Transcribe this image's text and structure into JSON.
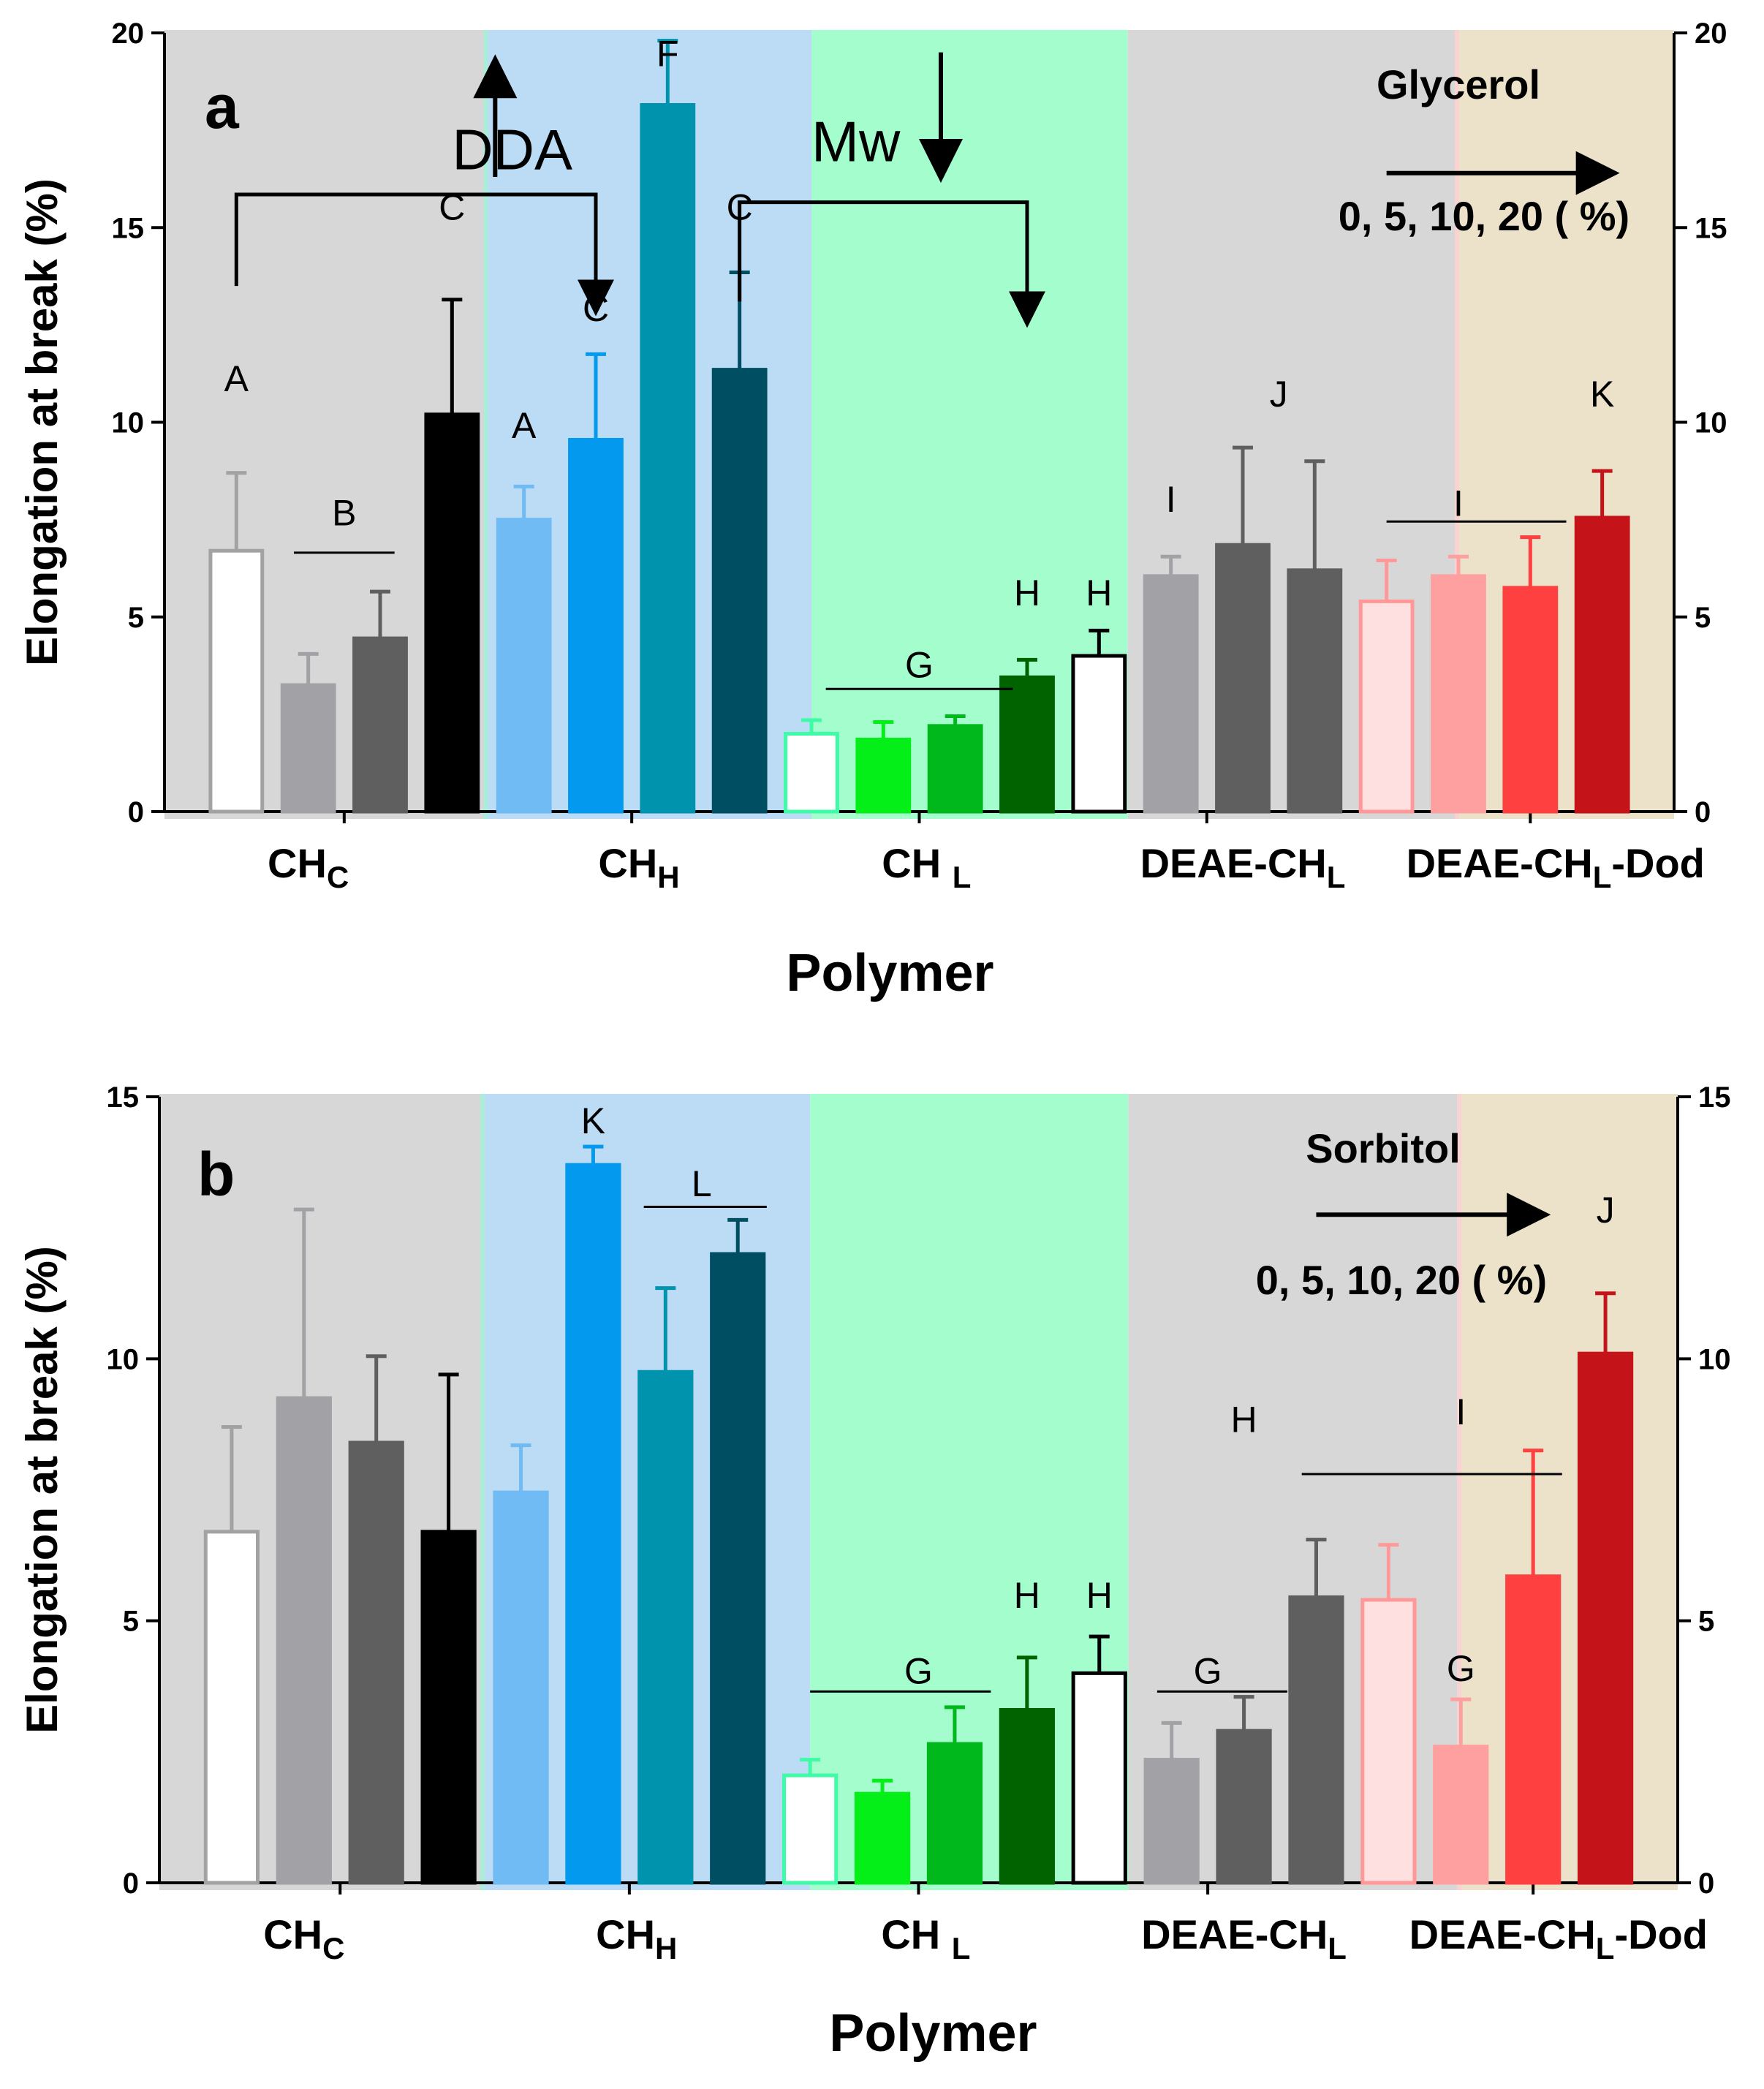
{
  "colors": {
    "bg_chc": "#d7d7d7",
    "bg_chh": "#bcdcf5",
    "bg_chl": "#a3fdcc",
    "bg_deae": "#d7d7d7",
    "bg_dod": "#ebe2c9",
    "bg_edge_mint": "#9ff3da",
    "bg_edge_pink": "#fbd1d1",
    "fill_chc": [
      "#ffffff",
      "#a2a2a6",
      "#5f5f5f",
      "#000000"
    ],
    "stroke_chc": [
      "#a2a2a2",
      "#a2a2a6",
      "#5f5f5f",
      "#000000"
    ],
    "fill_chh": [
      "#70bbf4",
      "#0399ee",
      "#0093ae",
      "#004e62"
    ],
    "fill_chl": [
      "#ffffff",
      "#04ef17",
      "#00b81b",
      "#006300"
    ],
    "stroke_chl": [
      "#3dfba6",
      "#04ef17",
      "#00b81b",
      "#006300"
    ],
    "fill_deae": [
      "#ffffff",
      "#a2a2a6",
      "#5f5f5f",
      "#5f5f5f"
    ],
    "stroke_deae": [
      "#000000",
      "#a2a2a6",
      "#5f5f5f",
      "#5f5f5f"
    ],
    "fill_dod": [
      "#ffe0e0",
      "#ffa0a0",
      "#ff4040",
      "#c41419"
    ],
    "stroke_dod": [
      "#ff9999",
      "#ffa0a0",
      "#ff4040",
      "#c41419"
    ]
  },
  "chart_data": [
    {
      "panel": "a",
      "type": "bar",
      "ylabel": "Elongation at break (%)",
      "xlabel": "Polymer",
      "ylim": [
        0,
        20
      ],
      "yticks": [
        0,
        5,
        10,
        15,
        20
      ],
      "categories": [
        {
          "key": "chc",
          "label": "CH",
          "sub": "C",
          "suffix": ""
        },
        {
          "key": "chh",
          "label": "CH",
          "sub": "H",
          "suffix": ""
        },
        {
          "key": "chl",
          "label": "CH ",
          "sub": "L",
          "suffix": ""
        },
        {
          "key": "deae",
          "label": "DEAE-CH",
          "sub": "L",
          "suffix": ""
        },
        {
          "key": "dod",
          "label": "DEAE-CH",
          "sub": "L",
          "suffix": "-Dod"
        }
      ],
      "series_name": "Glycerol",
      "series_levels": "0,  5, 10, 20 ( %)",
      "values": {
        "chc": [
          6.7,
          3.25,
          4.45,
          10.2
        ],
        "chh": [
          7.5,
          9.55,
          18.15,
          11.35
        ],
        "chl": [
          2.0,
          1.85,
          2.2,
          3.45
        ],
        "deae": [
          4.0,
          6.05,
          6.85,
          6.2
        ],
        "dod": [
          5.4,
          6.05,
          5.75,
          7.55
        ]
      },
      "errors": {
        "chc": [
          2.0,
          0.8,
          1.2,
          2.95
        ],
        "chh": [
          0.85,
          2.2,
          1.65,
          2.5
        ],
        "chl": [
          0.35,
          0.45,
          0.25,
          0.45
        ],
        "deae": [
          0.65,
          0.5,
          2.5,
          2.8
        ],
        "dod": [
          1.05,
          0.5,
          1.3,
          1.2
        ]
      },
      "letters": [
        {
          "text": "A",
          "x": 1.0,
          "y": 10.8
        },
        {
          "text": "B",
          "x": 2.5,
          "y": 7.35
        },
        {
          "text": "C",
          "x": 4.0,
          "y": 15.2
        },
        {
          "text": "A",
          "x": 5.0,
          "y": 9.6
        },
        {
          "text": "C",
          "x": 6.0,
          "y": 12.6
        },
        {
          "text": "F",
          "x": 7.0,
          "y": 19.15
        },
        {
          "text": "C",
          "x": 8.0,
          "y": 15.2
        },
        {
          "text": "G",
          "x": 10.5,
          "y": 3.45
        },
        {
          "text": "H",
          "x": 12.0,
          "y": 5.3
        },
        {
          "text": "H",
          "x": 13.0,
          "y": 5.3
        },
        {
          "text": "I",
          "x": 14.0,
          "y": 7.7
        },
        {
          "text": "J",
          "x": 15.5,
          "y": 10.4
        },
        {
          "text": "I",
          "x": 18.0,
          "y": 7.6
        },
        {
          "text": "K",
          "x": 20.0,
          "y": 10.4
        }
      ],
      "group_lines": [
        {
          "x1": 1.8,
          "x2": 3.2,
          "y": 6.65
        },
        {
          "x1": 9.2,
          "x2": 11.8,
          "y": 3.15
        },
        {
          "x1": 17.0,
          "x2": 19.5,
          "y": 7.45
        }
      ],
      "annotations": [
        {
          "text": "DDA",
          "x": 4.0,
          "y": 16.5
        },
        {
          "text": "Mw",
          "x": 9.0,
          "y": 16.7
        }
      ],
      "arrows": {
        "dda_arrow_up": [
          4.6,
          16.3,
          4.6,
          19.0
        ],
        "mw_arrow_down": [
          10.8,
          19.5,
          10.8,
          16.6
        ],
        "dda_bracket": [
          [
            1.0,
            13.5
          ],
          [
            1.0,
            15.85
          ],
          [
            6.0,
            15.85
          ],
          [
            6.0,
            13.1
          ]
        ],
        "mw_bracket": [
          [
            8.0,
            13.1
          ],
          [
            8.0,
            15.65
          ],
          [
            12.0,
            15.65
          ],
          [
            12.0,
            12.8
          ]
        ],
        "legend_arrow": [
          17.0,
          16.4,
          20.0,
          16.4
        ]
      }
    },
    {
      "panel": "b",
      "type": "bar",
      "ylabel": "Elongation at break (%)",
      "xlabel": "Polymer",
      "ylim": [
        0,
        15
      ],
      "yticks": [
        0,
        5,
        10,
        15
      ],
      "categories": [
        {
          "key": "chc",
          "label": "CH",
          "sub": "C",
          "suffix": ""
        },
        {
          "key": "chh",
          "label": "CH",
          "sub": "H",
          "suffix": ""
        },
        {
          "key": "chl",
          "label": "CH ",
          "sub": "L",
          "suffix": ""
        },
        {
          "key": "deae",
          "label": "DEAE-CH",
          "sub": "L",
          "suffix": ""
        },
        {
          "key": "dod",
          "label": "DEAE-CH",
          "sub": "L",
          "suffix": "-Dod"
        }
      ],
      "series_name": "Sorbitol",
      "series_levels": "0,  5, 10, 20 ( %)",
      "values": {
        "chc": [
          6.7,
          9.25,
          8.4,
          6.7
        ],
        "chh": [
          7.45,
          13.7,
          9.75,
          12.0
        ],
        "chl": [
          2.05,
          1.7,
          2.65,
          3.3
        ],
        "deae": [
          4.0,
          2.35,
          2.9,
          5.45
        ],
        "dod": [
          5.4,
          2.6,
          5.85,
          10.1
        ]
      },
      "errors": {
        "chc": [
          2.0,
          3.6,
          1.65,
          3.0
        ],
        "chh": [
          0.9,
          0.35,
          1.6,
          0.65
        ],
        "chl": [
          0.3,
          0.25,
          0.7,
          1.0
        ],
        "deae": [
          0.7,
          0.7,
          0.65,
          1.1
        ],
        "dod": [
          1.05,
          0.9,
          2.4,
          1.15
        ]
      },
      "letters": [
        {
          "text": "K",
          "x": 6.0,
          "y": 14.3
        },
        {
          "text": "L",
          "x": 7.5,
          "y": 13.1
        },
        {
          "text": "G",
          "x": 10.5,
          "y": 3.8
        },
        {
          "text": "H",
          "x": 12.0,
          "y": 5.25
        },
        {
          "text": "H",
          "x": 13.0,
          "y": 5.25
        },
        {
          "text": "G",
          "x": 14.5,
          "y": 3.8
        },
        {
          "text": "H",
          "x": 15.0,
          "y": 8.6
        },
        {
          "text": "I",
          "x": 18.0,
          "y": 8.75
        },
        {
          "text": "G",
          "x": 18.0,
          "y": 3.85
        },
        {
          "text": "J",
          "x": 20.0,
          "y": 12.6
        }
      ],
      "group_lines": [
        {
          "x1": 6.7,
          "x2": 8.4,
          "y": 12.9
        },
        {
          "x1": 9.0,
          "x2": 11.5,
          "y": 3.65
        },
        {
          "x1": 13.8,
          "x2": 15.6,
          "y": 3.65
        },
        {
          "x1": 15.8,
          "x2": 19.4,
          "y": 7.8
        }
      ],
      "annotations": [],
      "arrows": {
        "legend_arrow": [
          16.0,
          12.75,
          19.0,
          12.75
        ]
      }
    }
  ]
}
